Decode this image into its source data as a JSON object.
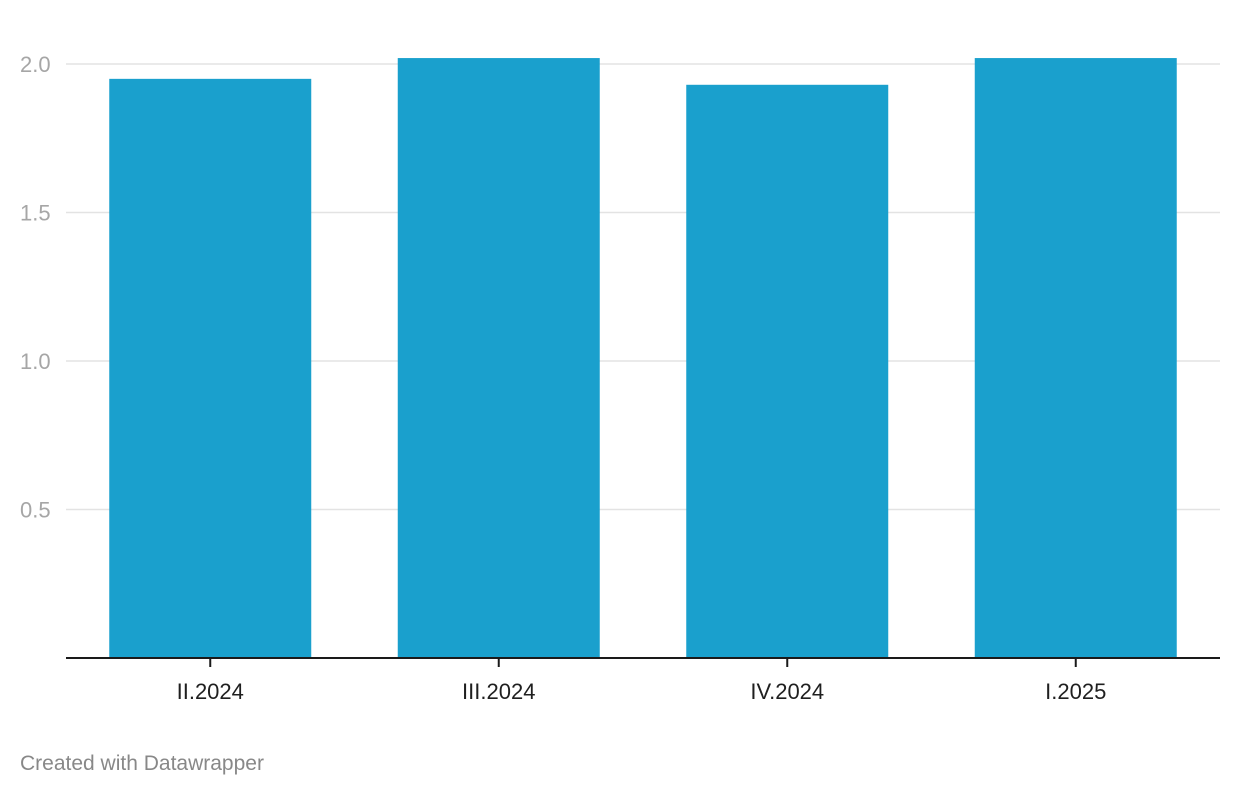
{
  "chart_data": {
    "type": "bar",
    "categories": [
      "II.2024",
      "III.2024",
      "IV.2024",
      "I.2025"
    ],
    "values": [
      1.95,
      2.02,
      1.93,
      2.02
    ],
    "title": "",
    "xlabel": "",
    "ylabel": "",
    "ylim": [
      0,
      2.0
    ],
    "yticks": [
      {
        "value": 2.0,
        "label": "2.0"
      },
      {
        "value": 1.5,
        "label": "1.5"
      },
      {
        "value": 1.0,
        "label": "1.0"
      },
      {
        "value": 0.5,
        "label": "0.5"
      }
    ],
    "bar_color": "#1aa0cd",
    "grid": true,
    "legend": "none"
  },
  "footer": {
    "credit": "Created with Datawrapper"
  }
}
